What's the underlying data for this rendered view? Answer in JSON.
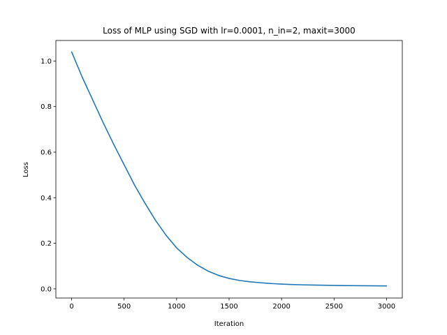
{
  "chart_data": {
    "type": "line",
    "title": "Loss of MLP using SGD with lr=0.0001, n_in=2, maxit=3000",
    "xlabel": "Iteration",
    "ylabel": "Loss",
    "xlim": [
      -150,
      3150
    ],
    "ylim": [
      -0.04,
      1.09
    ],
    "xticks": [
      0,
      500,
      1000,
      1500,
      2000,
      2500,
      3000
    ],
    "xtick_labels": [
      "0",
      "500",
      "1000",
      "1500",
      "2000",
      "2500",
      "3000"
    ],
    "yticks": [
      0.0,
      0.2,
      0.4,
      0.6,
      0.8,
      1.0
    ],
    "ytick_labels": [
      "0.0",
      "0.2",
      "0.4",
      "0.6",
      "0.8",
      "1.0"
    ],
    "grid": false,
    "legend": false,
    "series": [
      {
        "color": "#1f77b4",
        "x": [
          0,
          100,
          200,
          300,
          400,
          500,
          600,
          700,
          800,
          900,
          1000,
          1100,
          1200,
          1300,
          1400,
          1500,
          1600,
          1700,
          1800,
          1900,
          2000,
          2100,
          2200,
          2300,
          2400,
          2500,
          2600,
          2700,
          2800,
          2900,
          3000
        ],
        "y": [
          1.04,
          0.93,
          0.83,
          0.73,
          0.635,
          0.545,
          0.455,
          0.375,
          0.3,
          0.235,
          0.18,
          0.138,
          0.104,
          0.078,
          0.059,
          0.046,
          0.037,
          0.031,
          0.027,
          0.0235,
          0.021,
          0.019,
          0.0178,
          0.0168,
          0.016,
          0.0153,
          0.0147,
          0.0142,
          0.0138,
          0.0134,
          0.013
        ]
      }
    ]
  }
}
